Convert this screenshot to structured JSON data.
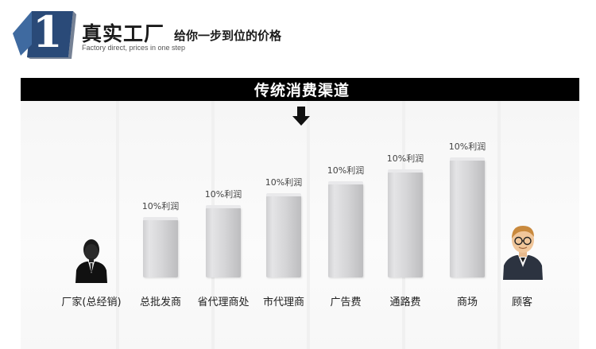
{
  "header": {
    "step_number": "1",
    "title": "真实工厂",
    "subtitle": "给你一步到位的价格",
    "english": "Factory direct, prices in one step"
  },
  "banner": {
    "title": "传统消费渠道"
  },
  "chart_data": {
    "type": "bar",
    "title": "传统消费渠道",
    "categories": [
      "总批发商",
      "省代理商处",
      "市代理商",
      "广告费",
      "通路费",
      "商场"
    ],
    "values": [
      10,
      10,
      10,
      10,
      10,
      10
    ],
    "data_labels": [
      "10%利润",
      "10%利润",
      "10%利润",
      "10%利润",
      "10%利润",
      "10%利润"
    ]
  },
  "endpoints": {
    "left_label": "厂家(总经销)",
    "right_label": "顾客",
    "left_icon": "manufacturer-person-icon",
    "right_icon": "customer-person-icon"
  },
  "colors": {
    "banner_bg": "#000000",
    "badge_blue": "#2a4a78",
    "bar_gray": "#d3d3d5"
  }
}
